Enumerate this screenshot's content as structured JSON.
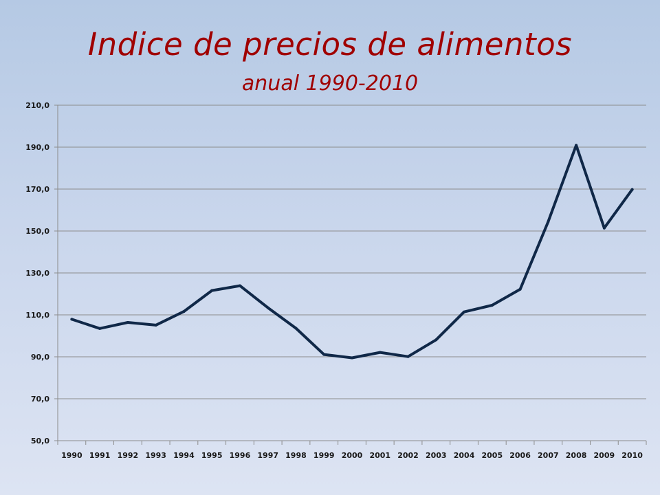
{
  "title": "Indice de precios de alimentos",
  "subtitle": "anual  1990-2010",
  "colors": {
    "title": "#a00000",
    "line": "#102848",
    "grid": "#8c8c8c"
  },
  "chart_data": {
    "type": "line",
    "title": "Indice de precios de alimentos",
    "subtitle": "anual  1990-2010",
    "xlabel": "",
    "ylabel": "",
    "x": [
      "1990",
      "1991",
      "1992",
      "1993",
      "1994",
      "1995",
      "1996",
      "1997",
      "1998",
      "1999",
      "2000",
      "2001",
      "2002",
      "2003",
      "2004",
      "2005",
      "2006",
      "2007",
      "2008",
      "2009",
      "2010"
    ],
    "series": [
      {
        "values": [
          107.9,
          103.5,
          106.4,
          105.1,
          111.6,
          121.6,
          123.9,
          113.4,
          103.6,
          91.1,
          89.5,
          92.1,
          90.1,
          98.1,
          111.4,
          114.6,
          122.2,
          154.4,
          190.9,
          151.4,
          169.8
        ]
      }
    ],
    "ylim": [
      50,
      210
    ],
    "y_ticks": [
      "50,0",
      "70,0",
      "90,0",
      "110,0",
      "130,0",
      "150,0",
      "170,0",
      "190,0",
      "210,0"
    ],
    "grid": true,
    "legend": "none"
  }
}
